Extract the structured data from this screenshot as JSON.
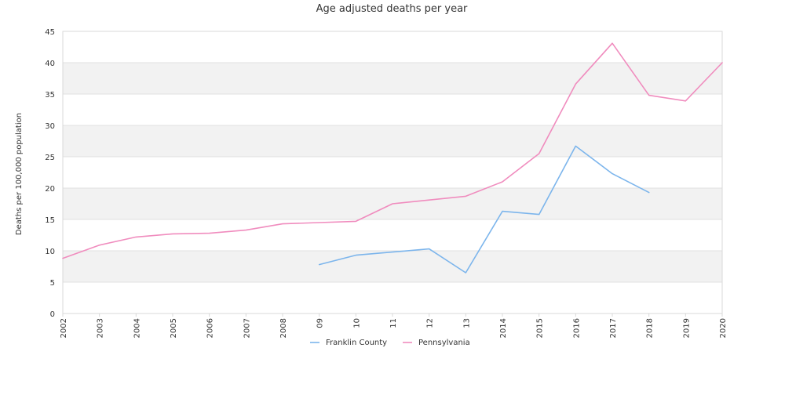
{
  "chart_data": {
    "type": "line",
    "title": "Age adjusted deaths per year",
    "xlabel": "",
    "ylabel": "Deaths per 100,000 population",
    "ylim": [
      0,
      45
    ],
    "yticks": [
      0,
      5,
      10,
      15,
      20,
      25,
      30,
      35,
      40,
      45
    ],
    "categories": [
      "2002",
      "2003",
      "2004",
      "2005",
      "2006",
      "2007",
      "2008",
      "09",
      "10",
      "11",
      "12",
      "13",
      "2014",
      "2015",
      "2016",
      "2017",
      "2018",
      "2019",
      "2020"
    ],
    "grid": true,
    "banded_background": true,
    "legend_position": "bottom-center",
    "series": [
      {
        "name": "Franklin County",
        "color": "#7cb5ec",
        "values": [
          null,
          null,
          null,
          null,
          null,
          null,
          null,
          7.8,
          9.3,
          9.8,
          10.3,
          6.5,
          16.3,
          15.8,
          26.7,
          22.3,
          19.3,
          null,
          null
        ]
      },
      {
        "name": "Pennsylvania",
        "color": "#f08cbe",
        "values": [
          8.8,
          10.9,
          12.2,
          12.7,
          12.8,
          13.3,
          14.3,
          14.5,
          14.7,
          17.5,
          18.1,
          18.7,
          21.0,
          25.5,
          36.6,
          43.1,
          34.8,
          33.9,
          40.0
        ]
      }
    ]
  }
}
